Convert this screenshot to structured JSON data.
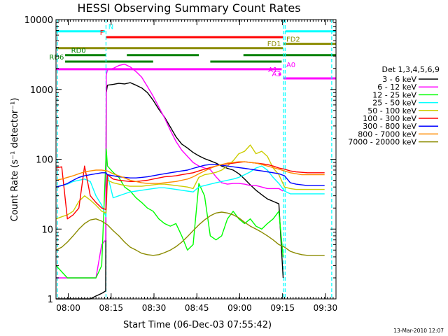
{
  "chart_data": {
    "type": "line",
    "title": "HESSI Observing Summary Count Rates",
    "xlabel": "Start Time (06-Dec-03 07:55:42)",
    "ylabel": "Count Rate (s⁻¹ detector⁻¹)",
    "x_tick_labels": [
      "08:00",
      "08:15",
      "08:30",
      "08:45",
      "09:00",
      "09:15",
      "09:30"
    ],
    "x_tick_values_min": [
      4.3,
      19.3,
      34.3,
      49.3,
      64.3,
      79.3,
      94.3
    ],
    "xlim_min": [
      0,
      98
    ],
    "y_scale": "log",
    "ylim": [
      1,
      10000
    ],
    "y_tick_labels": [
      "1",
      "10",
      "100",
      "1000",
      "10000"
    ],
    "y_tick_values": [
      1,
      10,
      100,
      1000,
      10000
    ],
    "legend_title": "Det 1,3,4,5,6,9",
    "legend_position": "right",
    "footer_date": "13-Mar-2010 12:07",
    "event_lines_min": [
      0.5,
      17.5,
      79.6,
      80.2,
      96.5
    ],
    "flags": [
      {
        "label": "N",
        "color": "#00ffff",
        "y": 6800,
        "segments": [
          [
            0,
            17.2
          ],
          [
            80.3,
            98
          ]
        ],
        "label_x": 18.3,
        "label_side": "right"
      },
      {
        "label": "F",
        "color": "#ff0000",
        "y": 5600,
        "segments": [
          [
            17.6,
            79.4
          ]
        ],
        "label_x": 16.8,
        "label_side": "left"
      },
      {
        "label": "FD1",
        "color": "#8b8b00",
        "y": 3900,
        "segments": [
          [
            0,
            79.4
          ]
        ],
        "label_x": 78.8,
        "label_side": "left"
      },
      {
        "label": "FD2",
        "color": "#8b8b00",
        "y": 4500,
        "segments": [
          [
            79.6,
            98
          ]
        ],
        "label_x": 80.6,
        "label_side": "right"
      },
      {
        "label": "RD0",
        "color": "#008000",
        "y": 3100,
        "segments": [
          [
            3.2,
            17.5
          ],
          [
            24.8,
            50
          ],
          [
            65.6,
            98
          ]
        ],
        "label_x": 5.3,
        "label_side": "right"
      },
      {
        "label": "RD6",
        "color": "#008000",
        "y": 2500,
        "segments": [
          [
            3.2,
            34
          ],
          [
            54,
            79
          ]
        ],
        "label_x": 2.8,
        "label_side": "left"
      },
      {
        "label": "A0",
        "color": "#ff00ff",
        "y": 1950,
        "segments": [
          [
            0,
            79
          ]
        ],
        "label_x": 80.6,
        "label_side": "right"
      },
      {
        "label": "A1",
        "color": "#ff00ff",
        "y": 1650,
        "segments": [
          [
            77.9,
            78.8
          ]
        ],
        "label_x": 77.5,
        "label_side": "left"
      },
      {
        "label": "A3",
        "color": "#ff00ff",
        "y": 1440,
        "segments": [
          [
            79.6,
            98
          ]
        ],
        "label_x": 78.8,
        "label_side": "left"
      }
    ],
    "series": [
      {
        "name": "3 - 6 keV",
        "color": "#000000",
        "x": [
          0,
          2,
          4,
          6,
          8,
          10,
          12,
          14,
          16,
          17.4,
          17.6,
          18,
          20,
          22,
          24,
          26,
          28,
          30,
          32,
          34,
          36,
          38,
          40,
          42,
          44,
          46,
          48,
          50,
          52,
          54,
          56,
          58,
          60,
          62,
          64,
          66,
          68,
          70,
          72,
          74,
          76,
          78,
          79.5
        ],
        "y": [
          1,
          1,
          1,
          1,
          1,
          1,
          1,
          1.1,
          1.2,
          1.3,
          900,
          1150,
          1180,
          1220,
          1200,
          1250,
          1150,
          1050,
          900,
          700,
          520,
          400,
          290,
          210,
          165,
          145,
          125,
          112,
          102,
          95,
          88,
          80,
          74,
          70,
          62,
          52,
          43,
          36,
          31,
          27,
          25,
          23,
          2
        ]
      },
      {
        "name": "6 - 12 keV",
        "color": "#ff00ff",
        "x": [
          0,
          2,
          4,
          6,
          8,
          10,
          12,
          14,
          16,
          17.4,
          17.6,
          18,
          20,
          22,
          24,
          26,
          28,
          30,
          32,
          34,
          36,
          38,
          40,
          42,
          44,
          46,
          48,
          50,
          52,
          54,
          56,
          58,
          60,
          62,
          64,
          66,
          68,
          70,
          72,
          74,
          76,
          78,
          79.5
        ],
        "y": [
          2,
          2,
          2,
          2,
          2,
          2,
          2,
          2,
          6,
          7,
          1600,
          1900,
          2000,
          2200,
          2300,
          2100,
          1800,
          1500,
          1100,
          800,
          560,
          390,
          260,
          180,
          135,
          110,
          90,
          80,
          75,
          71,
          56,
          46,
          44,
          45,
          45,
          44,
          42,
          42,
          40,
          38,
          38,
          38,
          35
        ]
      },
      {
        "name": "12 - 25 keV",
        "color": "#00ff00",
        "x": [
          0,
          4,
          8,
          10,
          12,
          14,
          16,
          17.6,
          18,
          20,
          22,
          24,
          26,
          28,
          30,
          32,
          34,
          36,
          38,
          40,
          42,
          44,
          46,
          48,
          50,
          52,
          54,
          56,
          58,
          60,
          62,
          64,
          66,
          68,
          70,
          72,
          74,
          76,
          78,
          79.5
        ],
        "y": [
          3,
          2,
          2,
          2,
          2,
          2,
          3,
          140,
          80,
          65,
          55,
          40,
          35,
          28,
          24,
          20,
          18,
          14,
          12,
          11,
          12,
          8,
          5,
          6,
          45,
          30,
          8,
          7,
          8,
          14,
          18,
          14,
          12,
          14,
          11,
          10,
          12,
          14,
          18,
          4
        ]
      },
      {
        "name": "25 - 50 keV",
        "color": "#00ffff",
        "x": [
          0,
          2,
          4,
          6,
          8,
          10,
          12,
          14,
          16,
          17.5,
          18,
          20,
          22,
          24,
          26,
          28,
          30,
          32,
          34,
          36,
          38,
          40,
          42,
          44,
          46,
          48,
          50,
          52,
          54,
          56,
          58,
          60,
          62,
          64,
          66,
          68,
          70,
          72,
          74,
          76,
          78,
          80,
          82,
          84,
          86,
          88,
          90,
          92,
          94
        ],
        "y": [
          40,
          42,
          44,
          48,
          50,
          52,
          48,
          30,
          22,
          15,
          60,
          28,
          30,
          32,
          34,
          35,
          36,
          37,
          38,
          39,
          39,
          38,
          37,
          36,
          35,
          34,
          40,
          42,
          44,
          46,
          48,
          50,
          52,
          55,
          60,
          66,
          75,
          80,
          70,
          55,
          45,
          35,
          32,
          32,
          32,
          32,
          32,
          32,
          32
        ]
      },
      {
        "name": "50 - 100 keV",
        "color": "#cccc00",
        "x": [
          0,
          2,
          4,
          6,
          8,
          10,
          12,
          14,
          16,
          17.5,
          18,
          20,
          22,
          24,
          26,
          28,
          30,
          32,
          34,
          36,
          38,
          40,
          42,
          44,
          46,
          48,
          50,
          52,
          54,
          56,
          58,
          60,
          62,
          64,
          66,
          68,
          70,
          72,
          74,
          76,
          78,
          80,
          82,
          84,
          86,
          88,
          90,
          92,
          94
        ],
        "y": [
          14,
          15,
          16,
          18,
          25,
          30,
          26,
          22,
          18,
          17,
          50,
          46,
          44,
          42,
          41,
          41,
          41,
          42,
          43,
          44,
          44,
          43,
          42,
          41,
          40,
          38,
          55,
          60,
          62,
          65,
          70,
          80,
          95,
          120,
          130,
          160,
          120,
          130,
          110,
          75,
          60,
          40,
          38,
          37,
          37,
          37,
          37,
          37,
          37
        ]
      },
      {
        "name": "100 - 300 keV",
        "color": "#ff0000",
        "x": [
          0,
          2,
          4,
          6,
          8,
          10,
          12,
          14,
          16,
          17.5,
          18,
          20,
          22,
          24,
          26,
          28,
          30,
          32,
          34,
          36,
          38,
          40,
          42,
          44,
          46,
          48,
          50,
          52,
          54,
          56,
          58,
          60,
          62,
          64,
          66,
          68,
          70,
          72,
          74,
          76,
          78,
          80,
          82,
          84,
          86,
          88,
          90,
          92,
          94
        ],
        "y": [
          75,
          78,
          14,
          16,
          20,
          80,
          30,
          24,
          20,
          19,
          60,
          52,
          50,
          49,
          48,
          48,
          49,
          50,
          52,
          54,
          56,
          57,
          58,
          60,
          62,
          64,
          68,
          72,
          76,
          80,
          84,
          86,
          88,
          90,
          92,
          90,
          88,
          86,
          84,
          80,
          75,
          72,
          68,
          66,
          65,
          64,
          64,
          64,
          64
        ]
      },
      {
        "name": "300 - 800 keV",
        "color": "#0000ff",
        "x": [
          0,
          2,
          4,
          6,
          8,
          10,
          12,
          14,
          16,
          17.5,
          18,
          20,
          22,
          24,
          26,
          28,
          30,
          32,
          34,
          36,
          38,
          40,
          42,
          44,
          46,
          48,
          50,
          52,
          54,
          56,
          58,
          60,
          62,
          64,
          66,
          68,
          70,
          72,
          74,
          76,
          78,
          80,
          82,
          84,
          86,
          88,
          90,
          92,
          94
        ],
        "y": [
          40,
          42,
          45,
          50,
          55,
          58,
          60,
          62,
          64,
          64,
          60,
          58,
          56,
          55,
          54,
          54,
          55,
          56,
          58,
          60,
          62,
          64,
          66,
          68,
          70,
          74,
          78,
          82,
          84,
          84,
          82,
          80,
          78,
          76,
          74,
          72,
          70,
          68,
          66,
          64,
          62,
          58,
          46,
          44,
          43,
          42,
          42,
          42,
          42
        ]
      },
      {
        "name": "800 - 7000 keV",
        "color": "#ff8c00",
        "x": [
          0,
          2,
          4,
          6,
          8,
          10,
          12,
          14,
          16,
          18,
          20,
          22,
          24,
          26,
          28,
          30,
          32,
          34,
          36,
          38,
          40,
          42,
          44,
          46,
          48,
          50,
          52,
          54,
          56,
          58,
          60,
          62,
          64,
          66,
          68,
          70,
          72,
          74,
          76,
          78,
          80,
          82,
          84,
          86,
          88,
          90,
          92,
          94
        ],
        "y": [
          50,
          52,
          55,
          58,
          62,
          66,
          68,
          70,
          70,
          68,
          62,
          58,
          54,
          50,
          48,
          46,
          45,
          45,
          45,
          46,
          47,
          48,
          50,
          52,
          56,
          62,
          68,
          74,
          80,
          84,
          88,
          90,
          92,
          92,
          90,
          88,
          84,
          80,
          76,
          72,
          68,
          64,
          62,
          60,
          60,
          60,
          60,
          60
        ]
      },
      {
        "name": "7000 - 20000 keV",
        "color": "#8b8b00",
        "x": [
          0,
          2,
          4,
          6,
          8,
          10,
          12,
          14,
          16,
          18,
          20,
          22,
          24,
          26,
          28,
          30,
          32,
          34,
          36,
          38,
          40,
          42,
          44,
          46,
          48,
          50,
          52,
          54,
          56,
          58,
          60,
          62,
          64,
          66,
          68,
          70,
          72,
          74,
          76,
          78,
          80,
          82,
          84,
          86,
          88,
          90,
          92,
          94
        ],
        "y": [
          5,
          5.5,
          6.5,
          8,
          10,
          12,
          13.5,
          14,
          13,
          11.5,
          9.5,
          8,
          6.5,
          5.5,
          5,
          4.5,
          4.3,
          4.2,
          4.3,
          4.6,
          5,
          5.6,
          6.5,
          7.8,
          9.5,
          11.5,
          13.5,
          15.5,
          17,
          17.5,
          17,
          16,
          14.5,
          12.5,
          11,
          10,
          9,
          8,
          7,
          6,
          5.5,
          4.8,
          4.5,
          4.3,
          4.2,
          4.2,
          4.2,
          4.2
        ]
      }
    ]
  }
}
